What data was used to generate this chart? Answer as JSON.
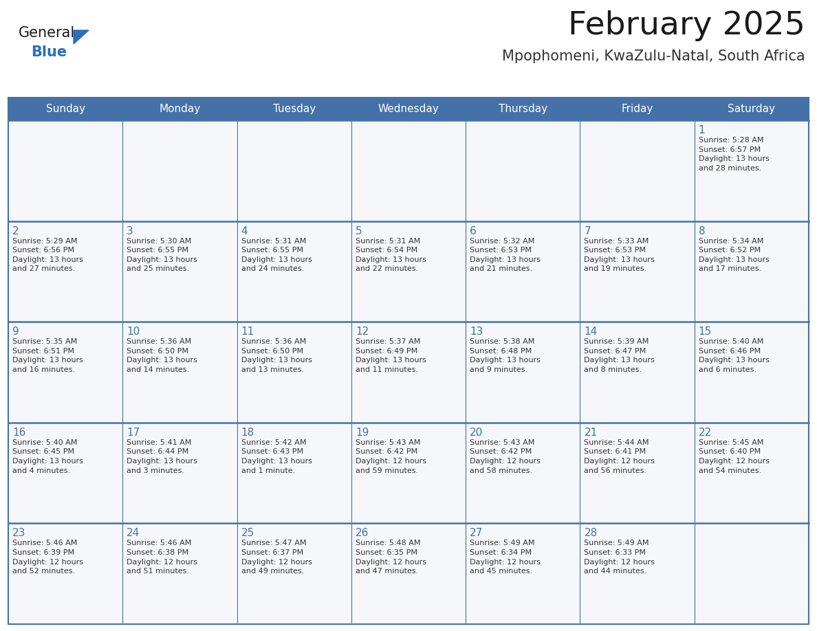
{
  "title": "February 2025",
  "subtitle": "Mpophomeni, KwaZulu-Natal, South Africa",
  "header_bg": "#4472a8",
  "header_text": "#ffffff",
  "border_color": "#4472a8",
  "row_sep_color": "#4472a8",
  "days_of_week": [
    "Sunday",
    "Monday",
    "Tuesday",
    "Wednesday",
    "Thursday",
    "Friday",
    "Saturday"
  ],
  "title_color": "#1a1a1a",
  "subtitle_color": "#333333",
  "day_num_color": "#4472a8",
  "cell_text_color": "#333333",
  "logo_general_color": "#1a1a1a",
  "logo_blue_color": "#2a6fba",
  "cell_bg": "#f5f7fa",
  "calendar_data": [
    [
      {
        "day": null,
        "info": null
      },
      {
        "day": null,
        "info": null
      },
      {
        "day": null,
        "info": null
      },
      {
        "day": null,
        "info": null
      },
      {
        "day": null,
        "info": null
      },
      {
        "day": null,
        "info": null
      },
      {
        "day": 1,
        "info": "Sunrise: 5:28 AM\nSunset: 6:57 PM\nDaylight: 13 hours\nand 28 minutes."
      }
    ],
    [
      {
        "day": 2,
        "info": "Sunrise: 5:29 AM\nSunset: 6:56 PM\nDaylight: 13 hours\nand 27 minutes."
      },
      {
        "day": 3,
        "info": "Sunrise: 5:30 AM\nSunset: 6:55 PM\nDaylight: 13 hours\nand 25 minutes."
      },
      {
        "day": 4,
        "info": "Sunrise: 5:31 AM\nSunset: 6:55 PM\nDaylight: 13 hours\nand 24 minutes."
      },
      {
        "day": 5,
        "info": "Sunrise: 5:31 AM\nSunset: 6:54 PM\nDaylight: 13 hours\nand 22 minutes."
      },
      {
        "day": 6,
        "info": "Sunrise: 5:32 AM\nSunset: 6:53 PM\nDaylight: 13 hours\nand 21 minutes."
      },
      {
        "day": 7,
        "info": "Sunrise: 5:33 AM\nSunset: 6:53 PM\nDaylight: 13 hours\nand 19 minutes."
      },
      {
        "day": 8,
        "info": "Sunrise: 5:34 AM\nSunset: 6:52 PM\nDaylight: 13 hours\nand 17 minutes."
      }
    ],
    [
      {
        "day": 9,
        "info": "Sunrise: 5:35 AM\nSunset: 6:51 PM\nDaylight: 13 hours\nand 16 minutes."
      },
      {
        "day": 10,
        "info": "Sunrise: 5:36 AM\nSunset: 6:50 PM\nDaylight: 13 hours\nand 14 minutes."
      },
      {
        "day": 11,
        "info": "Sunrise: 5:36 AM\nSunset: 6:50 PM\nDaylight: 13 hours\nand 13 minutes."
      },
      {
        "day": 12,
        "info": "Sunrise: 5:37 AM\nSunset: 6:49 PM\nDaylight: 13 hours\nand 11 minutes."
      },
      {
        "day": 13,
        "info": "Sunrise: 5:38 AM\nSunset: 6:48 PM\nDaylight: 13 hours\nand 9 minutes."
      },
      {
        "day": 14,
        "info": "Sunrise: 5:39 AM\nSunset: 6:47 PM\nDaylight: 13 hours\nand 8 minutes."
      },
      {
        "day": 15,
        "info": "Sunrise: 5:40 AM\nSunset: 6:46 PM\nDaylight: 13 hours\nand 6 minutes."
      }
    ],
    [
      {
        "day": 16,
        "info": "Sunrise: 5:40 AM\nSunset: 6:45 PM\nDaylight: 13 hours\nand 4 minutes."
      },
      {
        "day": 17,
        "info": "Sunrise: 5:41 AM\nSunset: 6:44 PM\nDaylight: 13 hours\nand 3 minutes."
      },
      {
        "day": 18,
        "info": "Sunrise: 5:42 AM\nSunset: 6:43 PM\nDaylight: 13 hours\nand 1 minute."
      },
      {
        "day": 19,
        "info": "Sunrise: 5:43 AM\nSunset: 6:42 PM\nDaylight: 12 hours\nand 59 minutes."
      },
      {
        "day": 20,
        "info": "Sunrise: 5:43 AM\nSunset: 6:42 PM\nDaylight: 12 hours\nand 58 minutes."
      },
      {
        "day": 21,
        "info": "Sunrise: 5:44 AM\nSunset: 6:41 PM\nDaylight: 12 hours\nand 56 minutes."
      },
      {
        "day": 22,
        "info": "Sunrise: 5:45 AM\nSunset: 6:40 PM\nDaylight: 12 hours\nand 54 minutes."
      }
    ],
    [
      {
        "day": 23,
        "info": "Sunrise: 5:46 AM\nSunset: 6:39 PM\nDaylight: 12 hours\nand 52 minutes."
      },
      {
        "day": 24,
        "info": "Sunrise: 5:46 AM\nSunset: 6:38 PM\nDaylight: 12 hours\nand 51 minutes."
      },
      {
        "day": 25,
        "info": "Sunrise: 5:47 AM\nSunset: 6:37 PM\nDaylight: 12 hours\nand 49 minutes."
      },
      {
        "day": 26,
        "info": "Sunrise: 5:48 AM\nSunset: 6:35 PM\nDaylight: 12 hours\nand 47 minutes."
      },
      {
        "day": 27,
        "info": "Sunrise: 5:49 AM\nSunset: 6:34 PM\nDaylight: 12 hours\nand 45 minutes."
      },
      {
        "day": 28,
        "info": "Sunrise: 5:49 AM\nSunset: 6:33 PM\nDaylight: 12 hours\nand 44 minutes."
      },
      {
        "day": null,
        "info": null
      }
    ]
  ],
  "figsize": [
    11.88,
    9.18
  ],
  "dpi": 100
}
